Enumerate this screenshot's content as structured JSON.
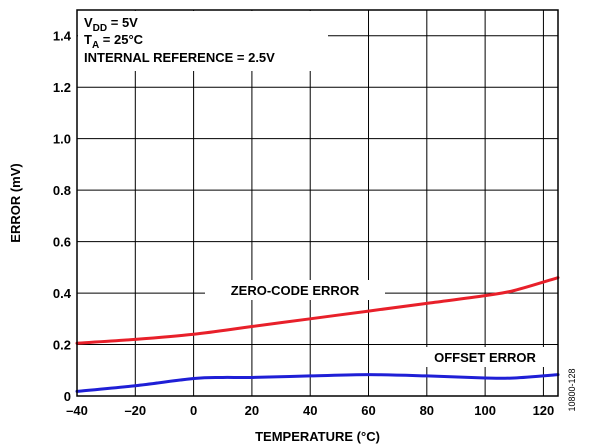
{
  "chart_data": {
    "type": "line",
    "title": "",
    "xlabel": "TEMPERATURE (°C)",
    "ylabel": "ERROR (mV)",
    "xlim": [
      -40,
      125
    ],
    "ylim": [
      0,
      1.5
    ],
    "x_ticks": [
      -40,
      -20,
      0,
      20,
      40,
      60,
      80,
      100,
      120
    ],
    "x_tick_labels": [
      "–40",
      "–20",
      "0",
      "20",
      "40",
      "60",
      "80",
      "100",
      "120"
    ],
    "y_ticks": [
      0,
      0.2,
      0.4,
      0.6,
      0.8,
      1.0,
      1.2,
      1.4
    ],
    "y_tick_labels": [
      "0",
      "0.2",
      "0.4",
      "0.6",
      "0.8",
      "1.0",
      "1.2",
      "1.4"
    ],
    "grid": true,
    "conditions": {
      "vdd_main": "V",
      "vdd_sub": "DD",
      "vdd_val": " = 5V",
      "ta_main": "T",
      "ta_sub": "A",
      "ta_val": " = 25°C",
      "ref": "INTERNAL REFERENCE = 2.5V"
    },
    "series": [
      {
        "name": "ZERO-CODE ERROR",
        "color": "#e8202a",
        "x": [
          -40,
          -20,
          0,
          20,
          40,
          60,
          80,
          100,
          110,
          125
        ],
        "y": [
          0.205,
          0.22,
          0.24,
          0.27,
          0.3,
          0.33,
          0.36,
          0.39,
          0.41,
          0.46
        ]
      },
      {
        "name": "OFFSET ERROR",
        "color": "#1f1fd6",
        "x": [
          -40,
          -20,
          0,
          10,
          20,
          40,
          60,
          80,
          100,
          110,
          125
        ],
        "y": [
          0.018,
          0.04,
          0.068,
          0.072,
          0.072,
          0.078,
          0.083,
          0.078,
          0.07,
          0.07,
          0.083
        ]
      }
    ]
  },
  "figure_id": "10800-128"
}
